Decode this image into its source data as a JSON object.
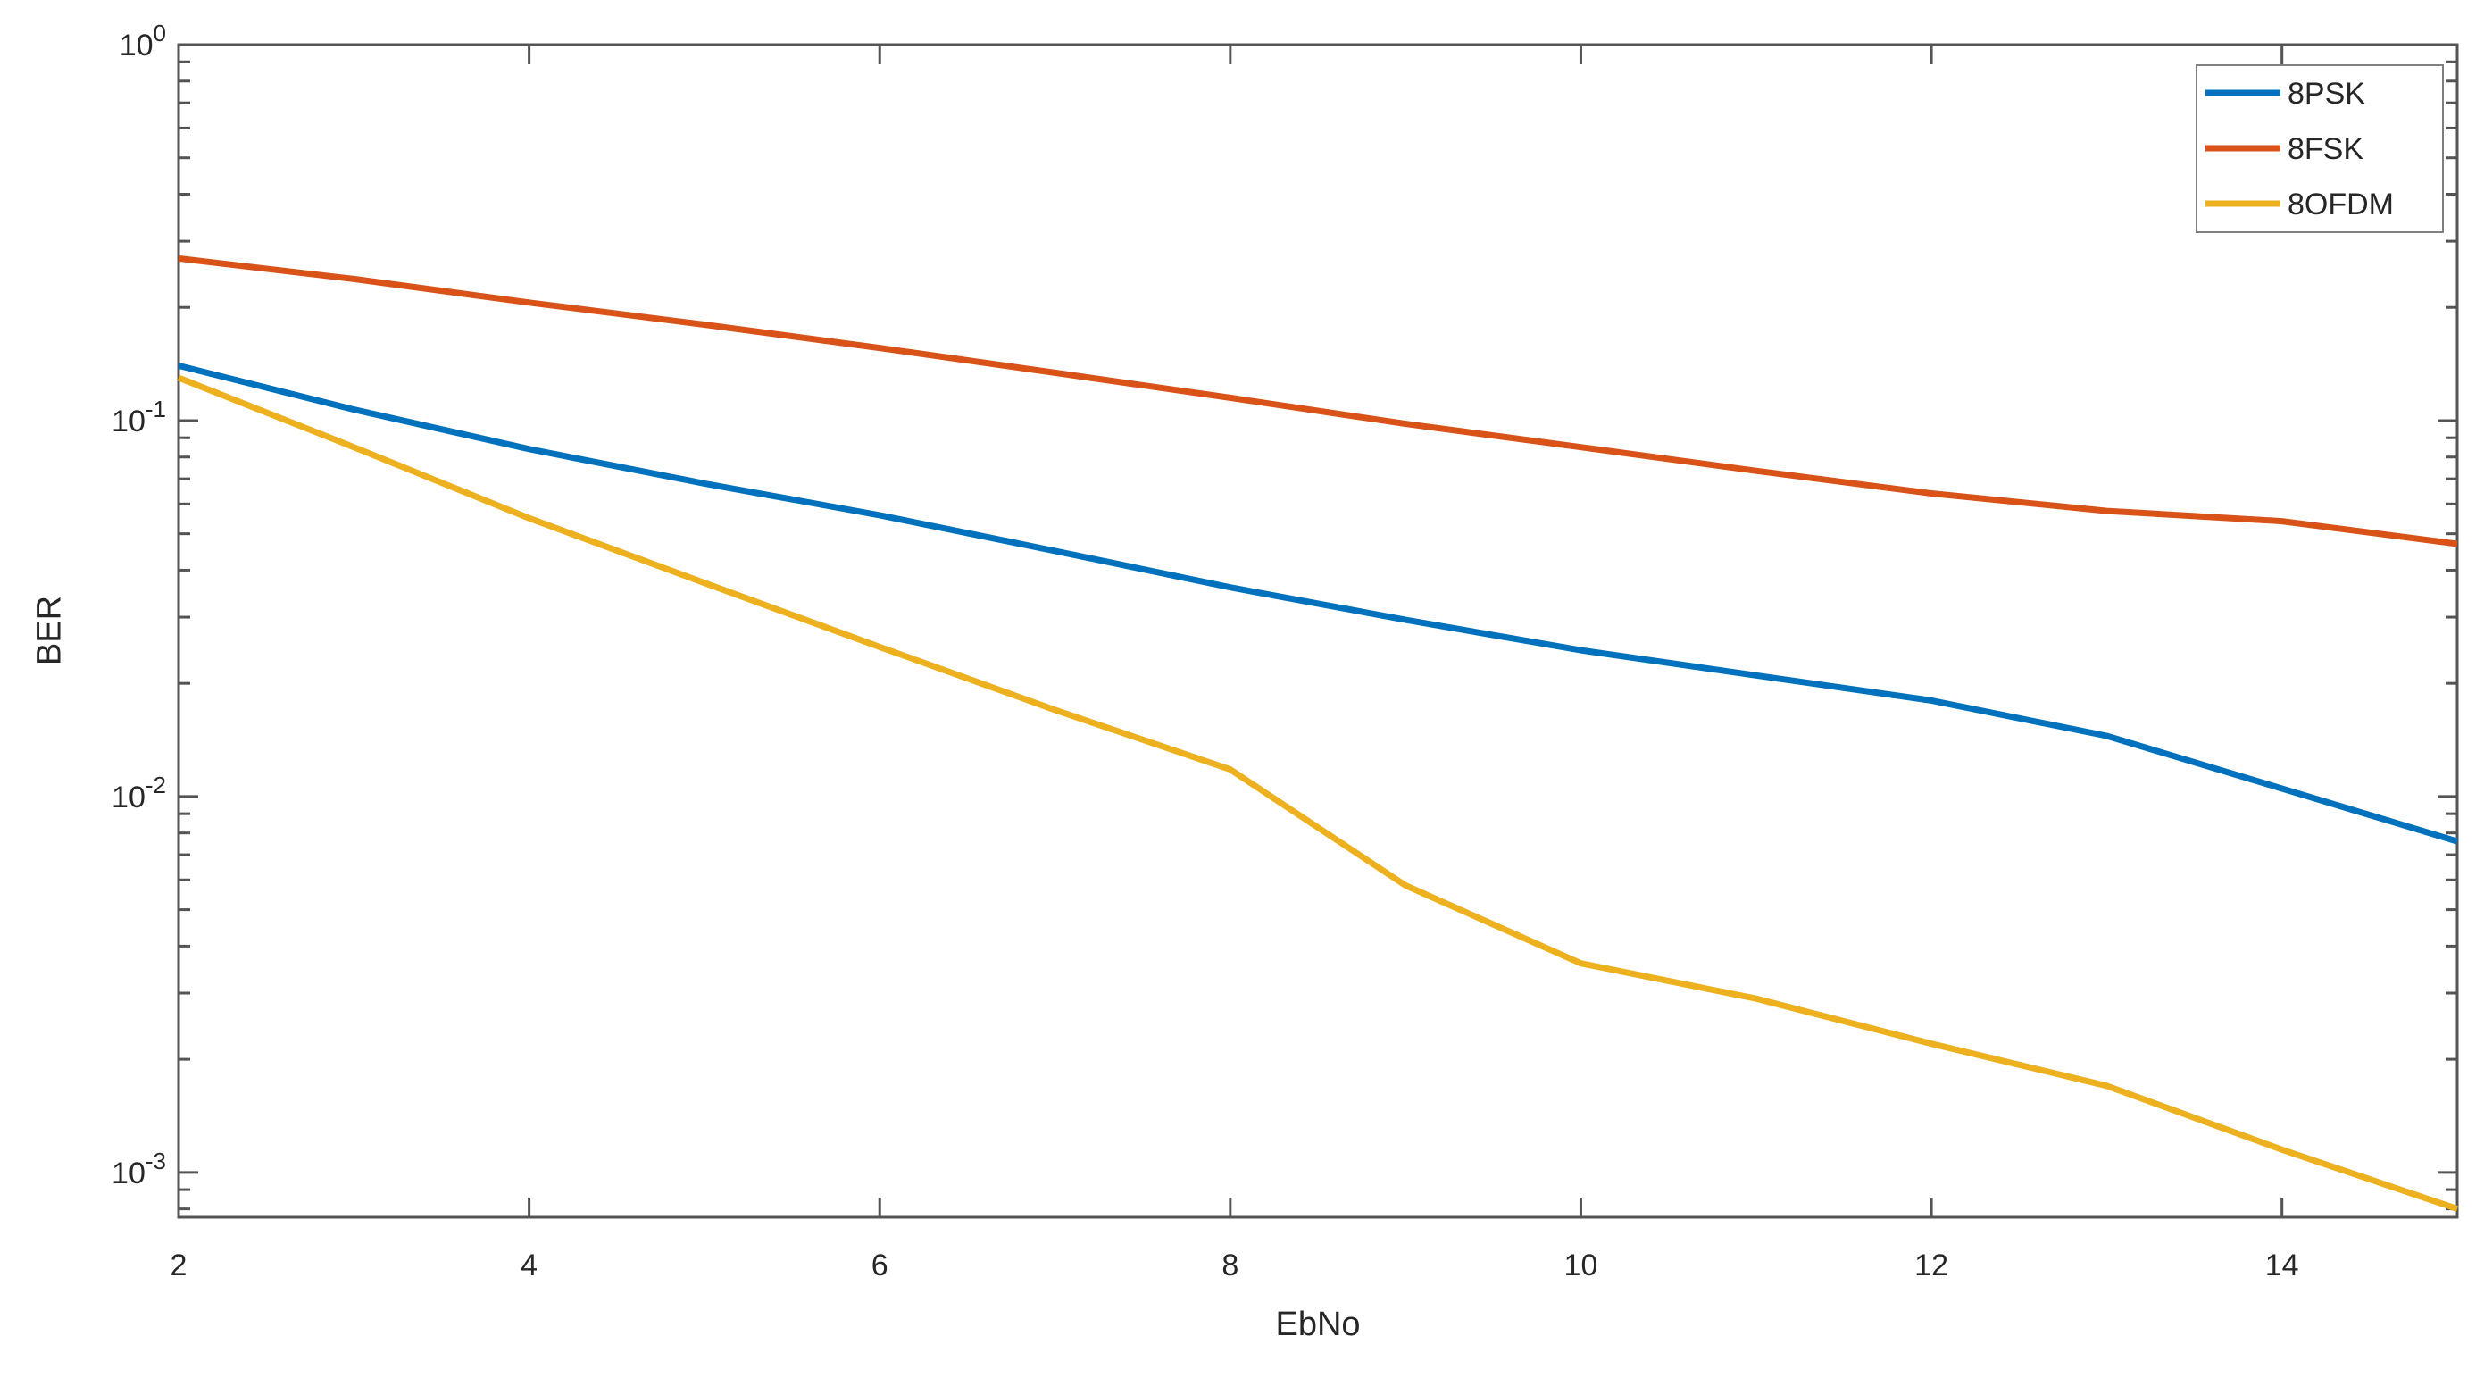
{
  "chart_data": {
    "type": "line",
    "title": "",
    "xlabel": "EbNo",
    "ylabel": "BER",
    "x_scale": "linear",
    "y_scale": "log",
    "xlim": [
      2,
      15
    ],
    "ylim": [
      0.00076,
      1
    ],
    "x_ticks": [
      2,
      4,
      6,
      8,
      10,
      12,
      14
    ],
    "y_tick_exponents": [
      0,
      -1,
      -2,
      -3
    ],
    "grid": false,
    "legend_position": "top-right",
    "x": [
      2,
      3,
      4,
      5,
      6,
      7,
      8,
      9,
      10,
      11,
      12,
      13,
      14,
      15
    ],
    "series": [
      {
        "name": "8PSK",
        "color": "#0072BD",
        "values": [
          0.14,
          0.107,
          0.084,
          0.068,
          0.056,
          0.045,
          0.036,
          0.0295,
          0.0245,
          0.021,
          0.018,
          0.0145,
          0.0105,
          0.0076
        ]
      },
      {
        "name": "8FSK",
        "color": "#D95319",
        "values": [
          0.27,
          0.238,
          0.206,
          0.18,
          0.156,
          0.134,
          0.115,
          0.098,
          0.085,
          0.0735,
          0.064,
          0.0575,
          0.054,
          0.047
        ]
      },
      {
        "name": "8OFDM",
        "color": "#EDB120",
        "values": [
          0.13,
          0.085,
          0.055,
          0.037,
          0.025,
          0.017,
          0.0118,
          0.0058,
          0.0036,
          0.0029,
          0.0022,
          0.0017,
          0.00115,
          0.0008
        ]
      }
    ],
    "style": {
      "axis_color": "#545454",
      "label_color": "#262626",
      "legend_border_color": "#808080",
      "legend_background": "#ffffff",
      "line_width": 7
    }
  }
}
